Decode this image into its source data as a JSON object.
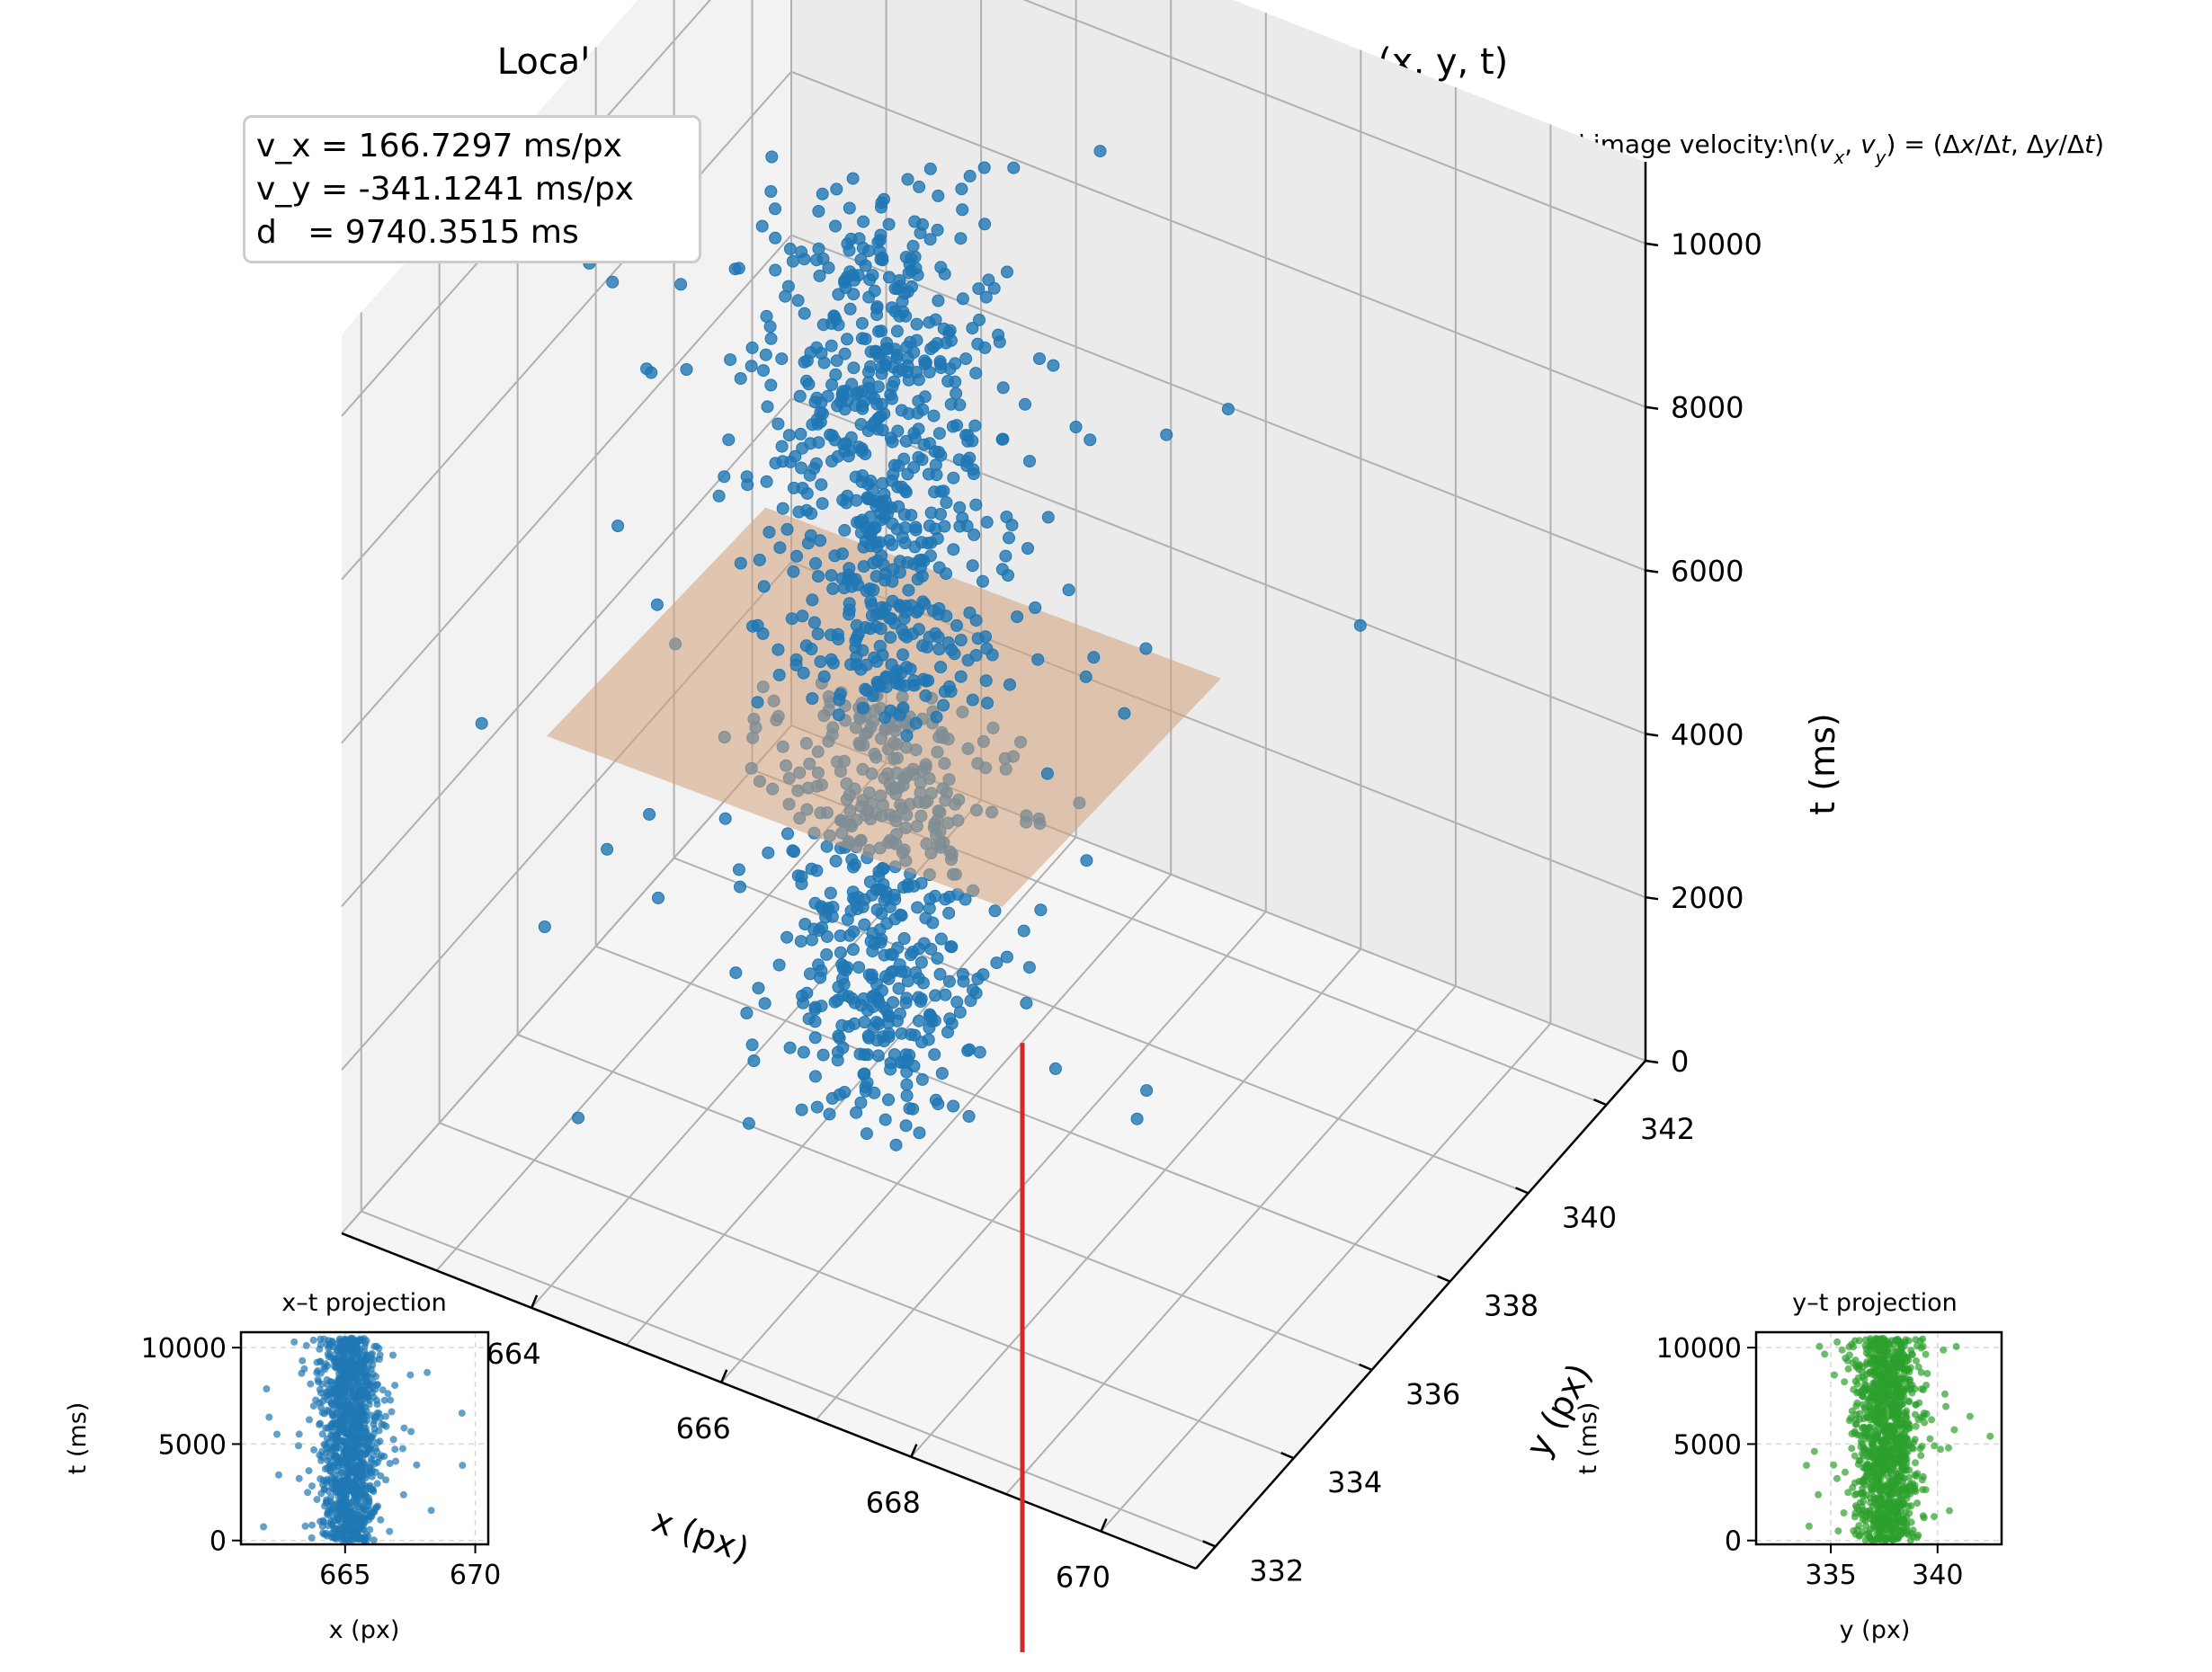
{
  "title": "Local Motion via Spatio-Temporal Plane Fitting in (x, y, t)",
  "subtitle": {
    "prefix": "Slope encodes local image velocity:\\n(",
    "vx": "v",
    "vx_sub": "x",
    "vy": "v",
    "vy_sub": "y",
    "mid": ") = (Δ",
    "dx": "x",
    "slash1": "/Δ",
    "dt1": "t",
    "mid2": ",  Δ",
    "dy": "y",
    "slash2": "/Δ",
    "dt2": "t",
    "suffix": ")"
  },
  "stats": {
    "vx_line": "v_x = 166.7297 ms/px",
    "vy_line": "v_y = -341.1241 ms/px",
    "d_line": "d   = 9740.3515 ms"
  },
  "colors": {
    "points": "#1f77b4",
    "plane": "#d2a07a",
    "flow_line": "#d62728",
    "yt_points": "#2ca02c"
  },
  "chart_data": [
    {
      "type": "scatter3d",
      "xlabel": "x (px)",
      "ylabel": "y (px)",
      "zlabel": "t (ms)",
      "xlim": [
        662,
        671
      ],
      "ylim": [
        331.5,
        343
      ],
      "zlim": [
        0,
        11000
      ],
      "xticks": [
        "664",
        "666",
        "668",
        "670"
      ],
      "yticks": [
        "332",
        "334",
        "336",
        "338",
        "340",
        "342"
      ],
      "zticks": [
        "0",
        "2000",
        "4000",
        "6000",
        "8000",
        "10000"
      ],
      "point_distribution": {
        "count": 1200,
        "x_center": 665.2,
        "x_spread": 0.55,
        "y_center": 337.6,
        "y_spread": 0.7,
        "t_range": [
          0,
          10500
        ],
        "outlier_fraction": 0.06
      },
      "fitted_plane": {
        "v_x": 166.7297,
        "v_y": -341.1241,
        "d": 9740.3515
      },
      "flow_line": {
        "x": 668.3,
        "y": 332.8,
        "t_top": 4500
      }
    },
    {
      "type": "scatter",
      "title": "x–t projection",
      "xlabel": "x (px)",
      "ylabel": "t (ms)",
      "xlim": [
        661,
        670.5
      ],
      "ylim": [
        -200,
        10800
      ],
      "xticks": [
        "665",
        "670"
      ],
      "yticks": [
        "0",
        "5000",
        "10000"
      ],
      "grid": true
    },
    {
      "type": "scatter",
      "title": "y–t projection",
      "xlabel": "y (px)",
      "ylabel": "t (ms)",
      "xlim": [
        331.5,
        343
      ],
      "ylim": [
        -200,
        10800
      ],
      "xticks": [
        "335",
        "340"
      ],
      "yticks": [
        "0",
        "5000",
        "10000"
      ],
      "grid": true
    }
  ]
}
